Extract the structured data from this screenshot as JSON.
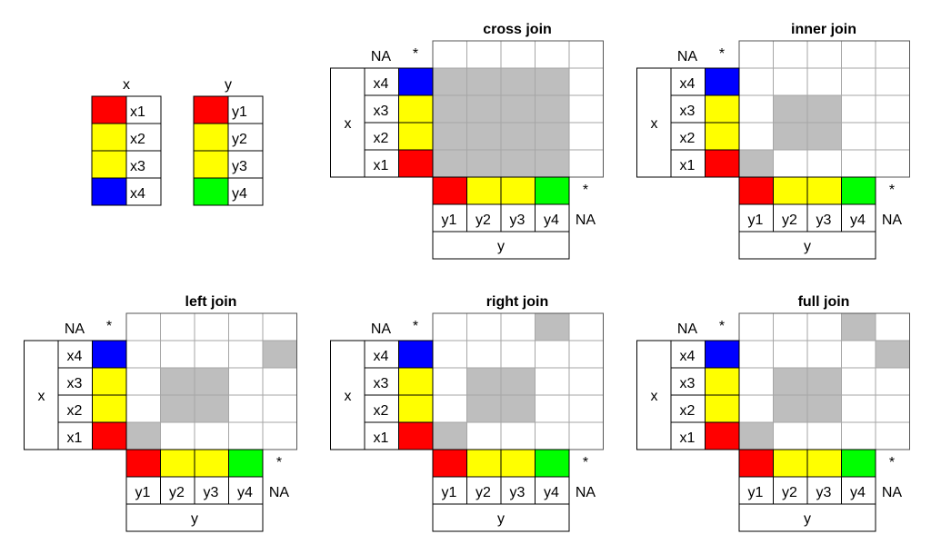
{
  "colors": {
    "red": "#ff0000",
    "yellow": "#ffff00",
    "blue": "#0000ff",
    "green": "#00ff00",
    "match": "#bebebe",
    "grid": "#a6a6a6",
    "border": "#000000"
  },
  "legend": {
    "x": {
      "title": "x",
      "rows": [
        {
          "label": "x1",
          "color": "red"
        },
        {
          "label": "x2",
          "color": "yellow"
        },
        {
          "label": "x3",
          "color": "yellow"
        },
        {
          "label": "x4",
          "color": "blue"
        }
      ]
    },
    "y": {
      "title": "y",
      "rows": [
        {
          "label": "y1",
          "color": "red"
        },
        {
          "label": "y2",
          "color": "yellow"
        },
        {
          "label": "y3",
          "color": "yellow"
        },
        {
          "label": "y4",
          "color": "green"
        }
      ]
    }
  },
  "matrix": {
    "x_rows": [
      {
        "label": "x4",
        "color": "blue"
      },
      {
        "label": "x3",
        "color": "yellow"
      },
      {
        "label": "x2",
        "color": "yellow"
      },
      {
        "label": "x1",
        "color": "red"
      }
    ],
    "y_cols": [
      {
        "label": "y1",
        "color": "red"
      },
      {
        "label": "y2",
        "color": "yellow"
      },
      {
        "label": "y3",
        "color": "yellow"
      },
      {
        "label": "y4",
        "color": "green"
      }
    ],
    "na_label": "NA",
    "star_label": "*",
    "x_axis_label": "x",
    "y_axis_label": "y"
  },
  "joins": [
    {
      "key": "cross",
      "title": "cross join",
      "cells": [
        [
          0,
          1
        ],
        [
          0,
          2
        ],
        [
          0,
          3
        ],
        [
          0,
          4
        ],
        [
          1,
          1
        ],
        [
          1,
          2
        ],
        [
          1,
          3
        ],
        [
          1,
          4
        ],
        [
          2,
          1
        ],
        [
          2,
          2
        ],
        [
          2,
          3
        ],
        [
          2,
          4
        ],
        [
          3,
          1
        ],
        [
          3,
          2
        ],
        [
          3,
          3
        ],
        [
          3,
          4
        ]
      ]
    },
    {
      "key": "inner",
      "title": "inner join",
      "cells": [
        [
          1,
          2
        ],
        [
          1,
          3
        ],
        [
          2,
          2
        ],
        [
          2,
          3
        ],
        [
          3,
          1
        ]
      ]
    },
    {
      "key": "left",
      "title": "left join",
      "cells": [
        [
          0,
          5
        ],
        [
          1,
          2
        ],
        [
          1,
          3
        ],
        [
          2,
          2
        ],
        [
          2,
          3
        ],
        [
          3,
          1
        ]
      ]
    },
    {
      "key": "right",
      "title": "right join",
      "cells": [
        [
          -1,
          4
        ],
        [
          1,
          2
        ],
        [
          1,
          3
        ],
        [
          2,
          2
        ],
        [
          2,
          3
        ],
        [
          3,
          1
        ]
      ]
    },
    {
      "key": "full",
      "title": "full join",
      "cells": [
        [
          -1,
          4
        ],
        [
          0,
          5
        ],
        [
          1,
          2
        ],
        [
          1,
          3
        ],
        [
          2,
          2
        ],
        [
          2,
          3
        ],
        [
          3,
          1
        ]
      ]
    }
  ]
}
